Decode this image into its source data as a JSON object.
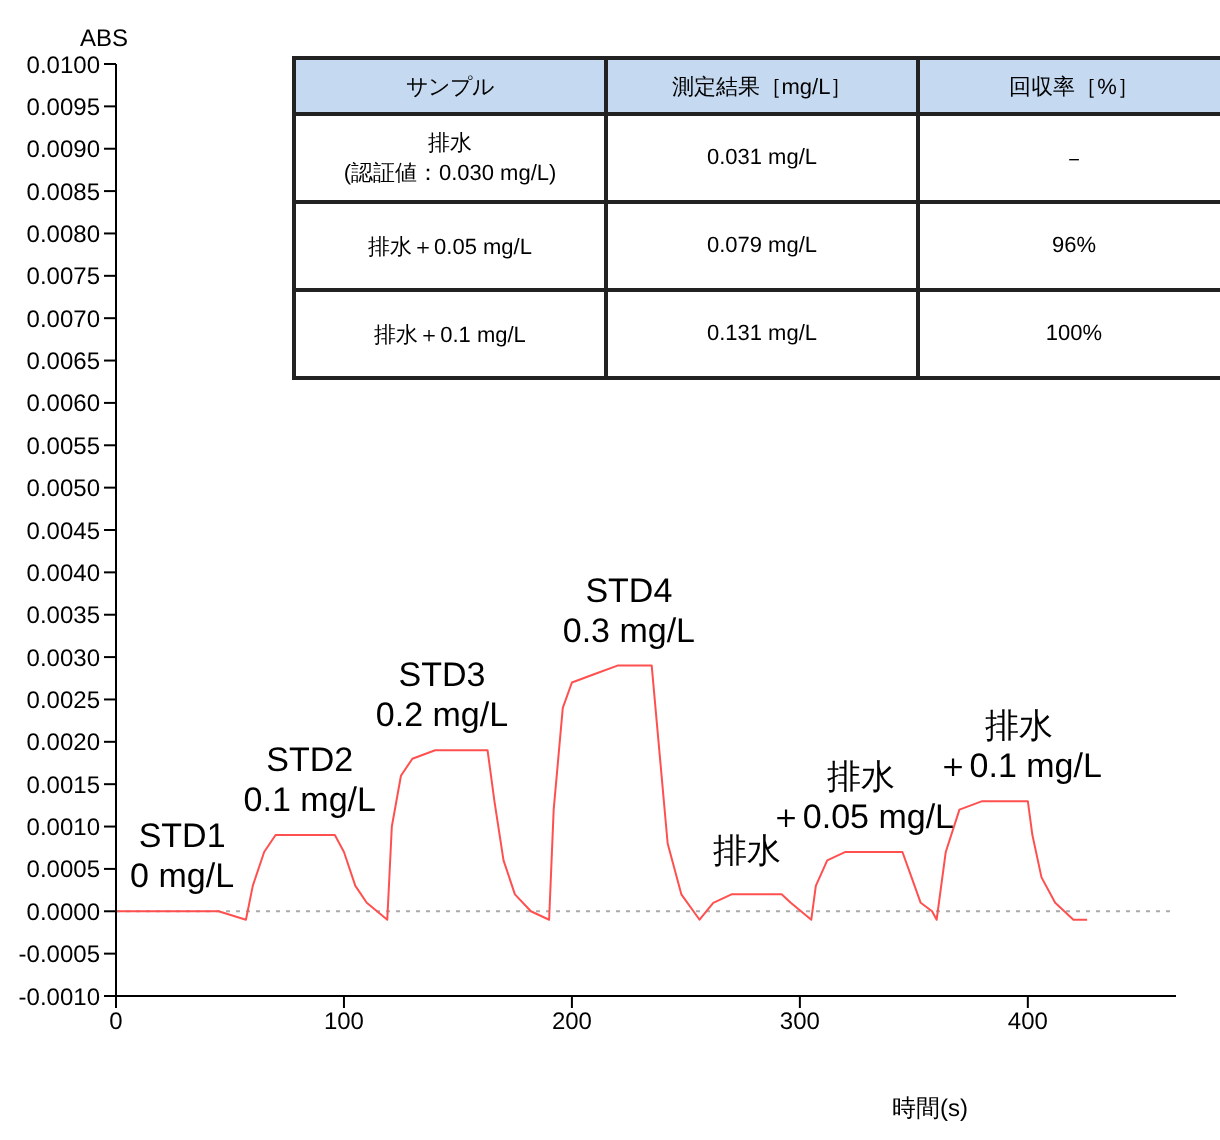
{
  "chart_data": {
    "type": "line",
    "ylabel": "ABS",
    "xlabel": "時間(s)",
    "x": [
      0,
      10,
      20,
      30,
      45,
      57,
      60,
      65,
      70,
      80,
      96,
      100,
      105,
      110,
      119,
      121,
      125,
      130,
      140,
      150,
      163,
      166,
      170,
      175,
      182,
      190,
      192,
      196,
      200,
      210,
      220,
      235,
      238,
      242,
      248,
      256,
      262,
      270,
      285,
      292,
      296,
      305,
      307,
      312,
      320,
      330,
      345,
      349,
      353,
      358,
      360,
      364,
      370,
      380,
      390,
      400,
      402,
      406,
      412,
      420,
      426
    ],
    "series": [
      {
        "color": "#ff5050",
        "values": [
          0,
          0,
          0,
          0,
          0,
          -0.0001,
          0.0003,
          0.0007,
          0.0009,
          0.0009,
          0.0009,
          0.0007,
          0.0003,
          0.0001,
          -0.0001,
          0.001,
          0.0016,
          0.0018,
          0.0019,
          0.0019,
          0.0019,
          0.0013,
          0.0006,
          0.0002,
          0,
          -0.0001,
          0.0012,
          0.0024,
          0.0027,
          0.0028,
          0.0029,
          0.0029,
          0.002,
          0.0008,
          0.0002,
          -0.0001,
          0.0001,
          0.0002,
          0.0002,
          0.0002,
          0.0001,
          -0.0001,
          0.0003,
          0.0006,
          0.0007,
          0.0007,
          0.0007,
          0.0004,
          0.0001,
          0,
          -0.0001,
          0.0007,
          0.0012,
          0.0013,
          0.0013,
          0.0013,
          0.0009,
          0.0004,
          0.0001,
          -0.0001,
          -0.0001
        ]
      }
    ],
    "xlim": [
      0,
      465
    ],
    "xticks": [
      0,
      100,
      200,
      300,
      400
    ],
    "ylim": [
      -0.001,
      0.01
    ],
    "yticks": [
      {
        "value": -0.001,
        "label": "-0.0010"
      },
      {
        "value": -0.0005,
        "label": "-0.0005"
      },
      {
        "value": 0,
        "label": "0.0000"
      },
      {
        "value": 0.0005,
        "label": "0.0005"
      },
      {
        "value": 0.001,
        "label": "0.0010"
      },
      {
        "value": 0.0015,
        "label": "0.0015"
      },
      {
        "value": 0.002,
        "label": "0.0020"
      },
      {
        "value": 0.0025,
        "label": "0.0025"
      },
      {
        "value": 0.003,
        "label": "0.0030"
      },
      {
        "value": 0.0035,
        "label": "0.0035"
      },
      {
        "value": 0.004,
        "label": "0.0040"
      },
      {
        "value": 0.0045,
        "label": "0.0045"
      },
      {
        "value": 0.005,
        "label": "0.0050"
      },
      {
        "value": 0.0055,
        "label": "0.0055"
      },
      {
        "value": 0.006,
        "label": "0.0060"
      },
      {
        "value": 0.0065,
        "label": "0.0065"
      },
      {
        "value": 0.007,
        "label": "0.0070"
      },
      {
        "value": 0.0075,
        "label": "0.0075"
      },
      {
        "value": 0.008,
        "label": "0.0080"
      },
      {
        "value": 0.0085,
        "label": "0.0085"
      },
      {
        "value": 0.009,
        "label": "0.0090"
      },
      {
        "value": 0.0095,
        "label": "0.0095"
      },
      {
        "value": 0.01,
        "label": "0.0100"
      }
    ],
    "ref_lines": [
      {
        "axis": "y",
        "value": 0,
        "color": "#aaaaaa",
        "line_style": "dotted"
      }
    ],
    "annotations": [
      {
        "text": "STD1\n0 mg/L",
        "x": 29,
        "y": 0
      },
      {
        "text": "STD2\n0.1 mg/L",
        "x": 85,
        "y": 0.0009
      },
      {
        "text": "STD3\n0.2 mg/L",
        "x": 143,
        "y": 0.0019
      },
      {
        "text": "STD4\n0.3 mg/L",
        "x": 225,
        "y": 0.0029
      },
      {
        "text": "排水",
        "x": 277,
        "y": 0.0003
      },
      {
        "text": "排水",
        "x": 327,
        "y": 0.0007
      },
      {
        "text": "＋0.05 mg/L",
        "x": 327,
        "y": 0.0007
      },
      {
        "text": "排水",
        "x": 396,
        "y": 0.0013
      },
      {
        "text": "＋0.1 mg/L",
        "x": 396,
        "y": 0.0013
      },
      "サンプル",
      "測定結果［mg/L］",
      "回収率［%］",
      "排水\n(認証値：0.030 mg/L)",
      "0.031 mg/L",
      "－",
      "排水＋0.05 mg/L",
      "0.079 mg/L",
      "96%",
      "排水＋0.1 mg/L",
      "0.131 mg/L",
      "100%"
    ],
    "grid": false
  }
}
